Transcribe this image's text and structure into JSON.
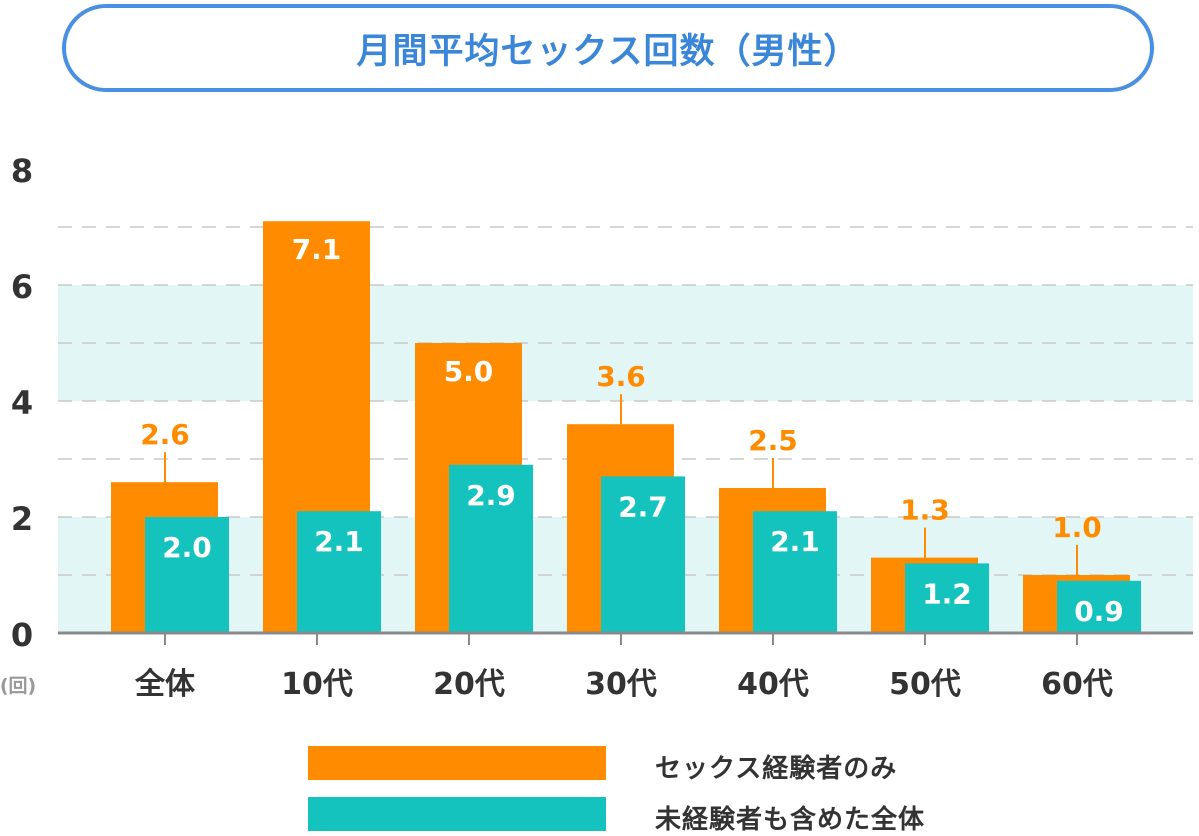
{
  "chart_data": {
    "type": "bar",
    "title": "月間平均セックス回数（男性）",
    "ylabel": "(回)",
    "ylim": [
      0,
      8
    ],
    "yticks": [
      0,
      2,
      4,
      6,
      8
    ],
    "categories": [
      "全体",
      "10代",
      "20代",
      "30代",
      "40代",
      "50代",
      "60代"
    ],
    "series": [
      {
        "name": "セックス経験者のみ",
        "color": "#ff8c00",
        "values": [
          2.6,
          7.1,
          5.0,
          3.6,
          2.5,
          1.3,
          1.0
        ]
      },
      {
        "name": "未経験者も含めた全体",
        "color": "#14c2be",
        "values": [
          2.0,
          2.1,
          2.9,
          2.7,
          2.1,
          1.2,
          0.9
        ]
      }
    ],
    "value_labels": [
      [
        "2.6",
        "7.1",
        "5.0",
        "3.6",
        "2.5",
        "1.3",
        "1.0"
      ],
      [
        "2.0",
        "2.1",
        "2.9",
        "2.7",
        "2.1",
        "1.2",
        "0.9"
      ]
    ],
    "grid": true,
    "legend_position": "bottom"
  },
  "colors": {
    "accent": "#4a90e2",
    "band": "#e2f6f5",
    "axis": "#8a8a8a",
    "text": "#333333"
  }
}
